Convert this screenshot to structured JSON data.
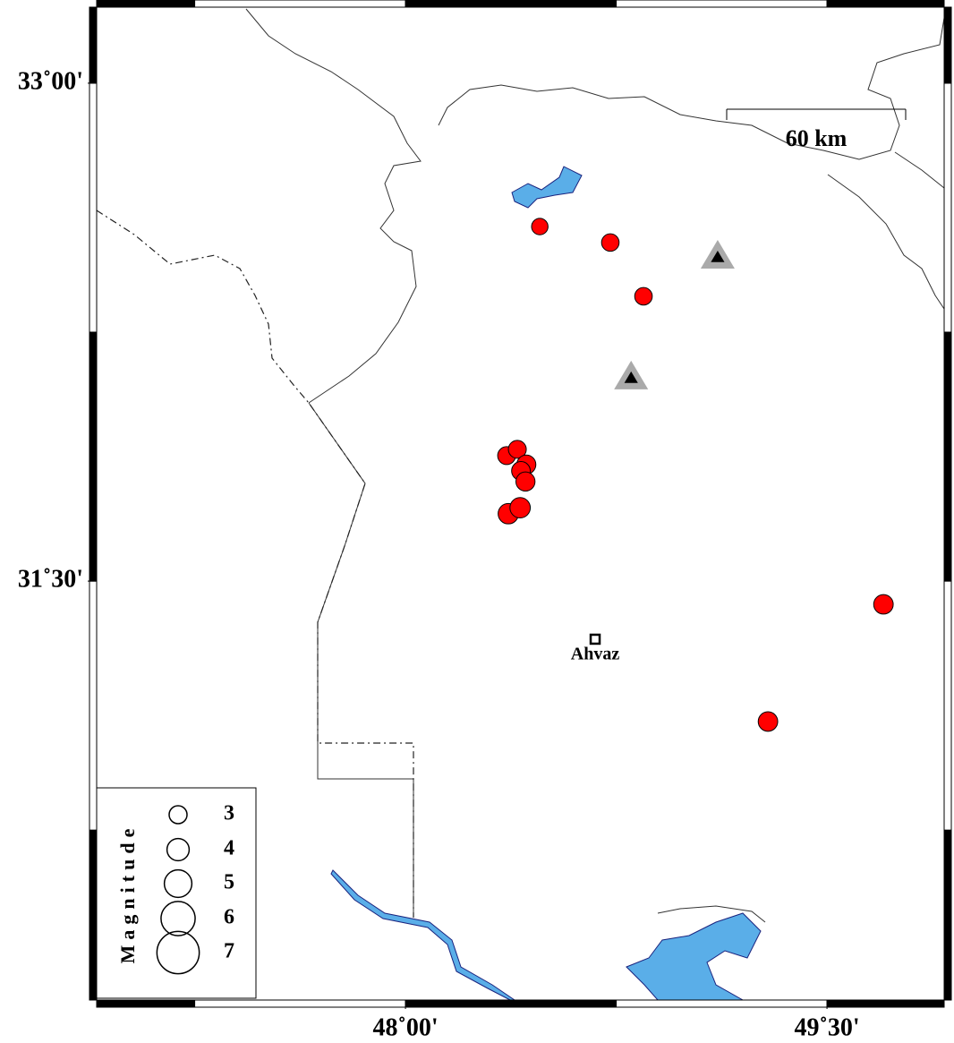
{
  "map": {
    "xlim": [
      46.901,
      49.917
    ],
    "ylim": [
      30.238,
      33.229
    ],
    "xticks": [
      {
        "value": 48,
        "label": "48˚00'"
      },
      {
        "value": 49.5,
        "label": "49˚30'"
      }
    ],
    "yticks": [
      {
        "value": 33,
        "label": "33˚00'"
      },
      {
        "value": 31.5,
        "label": "31˚30'"
      }
    ],
    "events": [
      {
        "lon": 48.478,
        "lat": 32.568,
        "magnitude": 2.6
      },
      {
        "lon": 48.729,
        "lat": 32.52,
        "magnitude": 2.9
      },
      {
        "lon": 48.847,
        "lat": 32.358,
        "magnitude": 2.9
      },
      {
        "lon": 48.36,
        "lat": 31.878,
        "magnitude": 3.0
      },
      {
        "lon": 48.398,
        "lat": 31.897,
        "magnitude": 3.0
      },
      {
        "lon": 48.43,
        "lat": 31.851,
        "magnitude": 3.3
      },
      {
        "lon": 48.411,
        "lat": 31.832,
        "magnitude": 3.2
      },
      {
        "lon": 48.427,
        "lat": 31.8,
        "magnitude": 3.3
      },
      {
        "lon": 48.366,
        "lat": 31.703,
        "magnitude": 3.6
      },
      {
        "lon": 48.408,
        "lat": 31.721,
        "magnitude": 3.6
      },
      {
        "lon": 49.701,
        "lat": 31.43,
        "magnitude": 3.4
      },
      {
        "lon": 49.29,
        "lat": 31.077,
        "magnitude": 3.4
      }
    ],
    "event_color": "#ff0000",
    "stations": [
      {
        "lon": 49.111,
        "lat": 32.474
      },
      {
        "lon": 48.803,
        "lat": 32.11
      }
    ],
    "city": {
      "name": "Ahvaz",
      "lon": 48.675,
      "lat": 31.325
    },
    "scale_bar_label": "60 km",
    "legend": {
      "title": "Magnitude",
      "magnitudes": [
        3,
        4,
        5,
        6,
        7
      ]
    }
  }
}
